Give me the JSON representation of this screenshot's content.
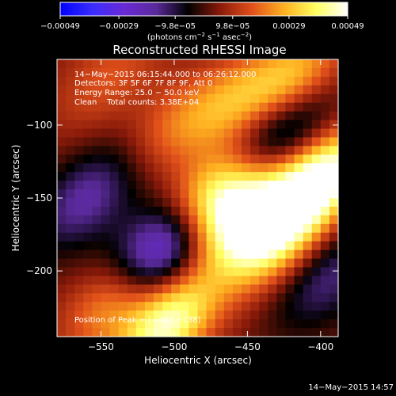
{
  "colors": {
    "background": "#000000",
    "text": "#ffffff",
    "colormap": [
      "#0000ff",
      "#3a2cff",
      "#6a2ad6",
      "#5a2a9a",
      "#000000",
      "#8a1a0a",
      "#e0501a",
      "#ffb020",
      "#ffff60",
      "#ffffff"
    ]
  },
  "chart_data": {
    "type": "heatmap",
    "title": "Reconstructed RHESSI Image",
    "xlabel": "Heliocentric X (arcsec)",
    "ylabel": "Heliocentric Y (arcsec)",
    "xlim": [
      -580,
      -388
    ],
    "ylim": [
      -245,
      -55
    ],
    "x_ticks": [
      -550,
      -500,
      -450,
      -400
    ],
    "y_ticks": [
      -200,
      -150,
      -100
    ],
    "x_tick_labels": [
      "−550",
      "−500",
      "−450",
      "−400"
    ],
    "y_tick_labels": [
      "−200",
      "−150",
      "−100"
    ],
    "grid": false,
    "colorbar": {
      "range": [
        -0.00049,
        0.00049
      ],
      "ticks": [
        -0.00049,
        -0.00029,
        -9.8e-05,
        9.8e-05,
        0.00029,
        0.00049
      ],
      "tick_labels": [
        "−0.00049",
        "−0.00029",
        "−9.8e−05",
        "9.8e−05",
        "0.00029",
        "0.00049"
      ],
      "unit_label_main": "(photons cm",
      "unit_label_exp1": "−2",
      "unit_label_mid": " s",
      "unit_label_exp2": "−1",
      "unit_label_mid2": " asec",
      "unit_label_exp3": "−2",
      "unit_label_end": ")"
    },
    "annotations": [
      "14−May−2015 06:15:44.000 to 06:26:12.000",
      "Detectors: 3F 5F 6F 7F 8F 9F, Att 0",
      "Energy Range: 25.0 − 50.0 keV",
      "Clean    Total counts: 3.38E+04"
    ],
    "peak_label": "Position of Peak = [−403,−138]",
    "sources": [
      {
        "x": -400,
        "y": -138,
        "amp": 0.00049
      },
      {
        "x": -455,
        "y": -162,
        "amp": 0.00044
      },
      {
        "x": -478,
        "y": -150,
        "amp": 0.0004
      },
      {
        "x": -432,
        "y": -178,
        "amp": 0.00036
      },
      {
        "x": -505,
        "y": -236,
        "amp": 0.00042
      },
      {
        "x": -540,
        "y": -218,
        "amp": 0.00024
      },
      {
        "x": -420,
        "y": -72,
        "amp": 0.00032
      },
      {
        "x": -460,
        "y": -85,
        "amp": 0.0002
      },
      {
        "x": -500,
        "y": -100,
        "amp": 0.00014
      },
      {
        "x": -505,
        "y": -182,
        "amp": -0.00049
      },
      {
        "x": -428,
        "y": -102,
        "amp": -0.0003
      },
      {
        "x": -560,
        "y": -150,
        "amp": -0.00022
      },
      {
        "x": -395,
        "y": -205,
        "amp": -0.00018
      },
      {
        "x": -545,
        "y": -68,
        "amp": 0.00012
      }
    ]
  },
  "footer": {
    "timestamp": "14−May−2015 14:57"
  }
}
